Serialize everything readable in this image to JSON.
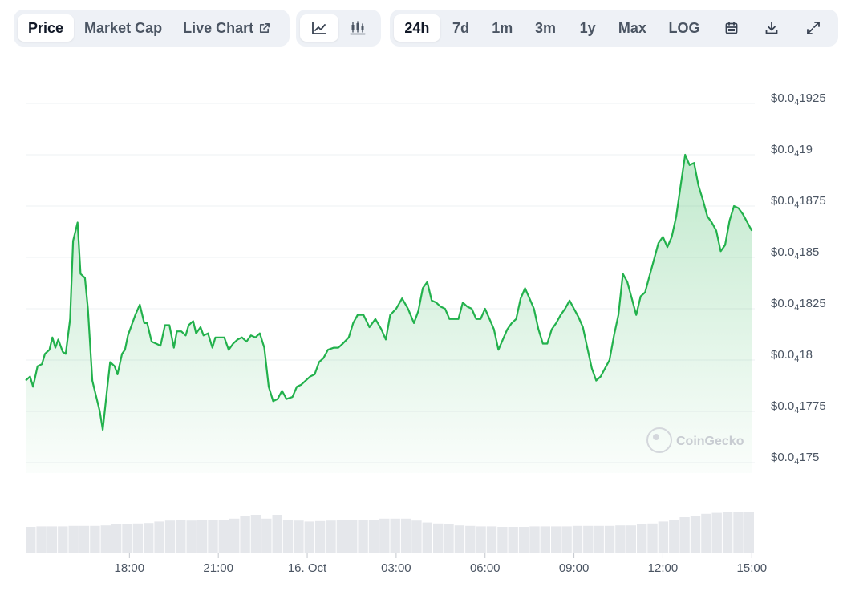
{
  "toolbar": {
    "tabs": [
      "Price",
      "Market Cap",
      "Live Chart"
    ],
    "chart_types": [
      "line-chart-icon",
      "candlestick-chart-icon"
    ],
    "ranges": [
      "24h",
      "7d",
      "1m",
      "3m",
      "1y",
      "Max",
      "LOG"
    ],
    "actions": [
      "calendar-icon",
      "download-icon",
      "expand-icon"
    ]
  },
  "watermark": "CoinGecko",
  "colors": {
    "line": "#22b14c",
    "fill_top": "#c8ecd2",
    "volume": "#e5e7eb",
    "grid": "#eef0f3"
  },
  "chart_data": {
    "type": "area",
    "title": "",
    "y_axis": {
      "ticks": [
        {
          "prefix": "$0.0",
          "sub": "4",
          "rest": "1925",
          "value": 1.925e-05
        },
        {
          "prefix": "$0.0",
          "sub": "4",
          "rest": "19",
          "value": 1.9e-05
        },
        {
          "prefix": "$0.0",
          "sub": "4",
          "rest": "1875",
          "value": 1.875e-05
        },
        {
          "prefix": "$0.0",
          "sub": "4",
          "rest": "185",
          "value": 1.85e-05
        },
        {
          "prefix": "$0.0",
          "sub": "4",
          "rest": "1825",
          "value": 1.825e-05
        },
        {
          "prefix": "$0.0",
          "sub": "4",
          "rest": "18",
          "value": 1.8e-05
        },
        {
          "prefix": "$0.0",
          "sub": "4",
          "rest": "1775",
          "value": 1.775e-05
        },
        {
          "prefix": "$0.0",
          "sub": "4",
          "rest": "175",
          "value": 1.75e-05
        }
      ],
      "ylim": [
        1.745e-05,
        1.935e-05
      ]
    },
    "x_axis": {
      "ticks": [
        {
          "label": "18:00",
          "hour": 3.5
        },
        {
          "label": "21:00",
          "hour": 6.5
        },
        {
          "label": "16. Oct",
          "hour": 9.5
        },
        {
          "label": "03:00",
          "hour": 12.5
        },
        {
          "label": "06:00",
          "hour": 15.5
        },
        {
          "label": "09:00",
          "hour": 18.5
        },
        {
          "label": "12:00",
          "hour": 21.5
        },
        {
          "label": "15:00",
          "hour": 24.5
        }
      ],
      "xlim": [
        0,
        24.6
      ]
    },
    "series": [
      {
        "hours": [
          0,
          0.15,
          0.25,
          0.4,
          0.55,
          0.65,
          0.8,
          0.9,
          1.0,
          1.1,
          1.25,
          1.35,
          1.5,
          1.6,
          1.75,
          1.85,
          2.0,
          2.1,
          2.25,
          2.35,
          2.5,
          2.6,
          2.75,
          2.85,
          3.0,
          3.1,
          3.25,
          3.35,
          3.45,
          3.55,
          3.7,
          3.85,
          4.0,
          4.1,
          4.25,
          4.4,
          4.55,
          4.7,
          4.85,
          5.0,
          5.1,
          5.25,
          5.4,
          5.5,
          5.65,
          5.75,
          5.9,
          6.0,
          6.15,
          6.3,
          6.4,
          6.55,
          6.7,
          6.85,
          7.0,
          7.15,
          7.3,
          7.45,
          7.6,
          7.75,
          7.9,
          8.05,
          8.2,
          8.35,
          8.5,
          8.65,
          8.8,
          9.0,
          9.15,
          9.3,
          9.45,
          9.6,
          9.75,
          9.9,
          10.05,
          10.2,
          10.4,
          10.55,
          10.7,
          10.9,
          11.05,
          11.2,
          11.4,
          11.6,
          11.8,
          12.0,
          12.15,
          12.3,
          12.5,
          12.7,
          12.9,
          13.1,
          13.25,
          13.4,
          13.55,
          13.7,
          13.85,
          14.0,
          14.15,
          14.3,
          14.45,
          14.6,
          14.75,
          14.9,
          15.05,
          15.2,
          15.35,
          15.5,
          15.65,
          15.8,
          15.95,
          16.1,
          16.25,
          16.4,
          16.55,
          16.7,
          16.85,
          17.0,
          17.15,
          17.3,
          17.45,
          17.6,
          17.75,
          17.9,
          18.05,
          18.2,
          18.35,
          18.5,
          18.65,
          18.8,
          18.95,
          19.1,
          19.25,
          19.4,
          19.55,
          19.7,
          19.85,
          20.0,
          20.15,
          20.3,
          20.45,
          20.6,
          20.75,
          20.9,
          21.05,
          21.2,
          21.35,
          21.5,
          21.65,
          21.8,
          21.95,
          22.1,
          22.25,
          22.4,
          22.55,
          22.7,
          22.85,
          23.0,
          23.15,
          23.3,
          23.45,
          23.6,
          23.75,
          23.9,
          24.05,
          24.2,
          24.35,
          24.5
        ],
        "values": [
          1.79e-05,
          1.792e-05,
          1.787e-05,
          1.797e-05,
          1.798e-05,
          1.803e-05,
          1.805e-05,
          1.811e-05,
          1.806e-05,
          1.81e-05,
          1.804e-05,
          1.803e-05,
          1.82e-05,
          1.858e-05,
          1.867e-05,
          1.842e-05,
          1.84e-05,
          1.825e-05,
          1.79e-05,
          1.784e-05,
          1.775e-05,
          1.766e-05,
          1.786e-05,
          1.799e-05,
          1.797e-05,
          1.793e-05,
          1.803e-05,
          1.805e-05,
          1.812e-05,
          1.816e-05,
          1.822e-05,
          1.827e-05,
          1.818e-05,
          1.818e-05,
          1.809e-05,
          1.808e-05,
          1.807e-05,
          1.817e-05,
          1.817e-05,
          1.806e-05,
          1.814e-05,
          1.814e-05,
          1.812e-05,
          1.817e-05,
          1.819e-05,
          1.813e-05,
          1.816e-05,
          1.812e-05,
          1.813e-05,
          1.806e-05,
          1.811e-05,
          1.811e-05,
          1.811e-05,
          1.805e-05,
          1.808e-05,
          1.81e-05,
          1.811e-05,
          1.809e-05,
          1.812e-05,
          1.811e-05,
          1.813e-05,
          1.806e-05,
          1.787e-05,
          1.78e-05,
          1.781e-05,
          1.785e-05,
          1.781e-05,
          1.782e-05,
          1.787e-05,
          1.788e-05,
          1.79e-05,
          1.792e-05,
          1.793e-05,
          1.799e-05,
          1.801e-05,
          1.805e-05,
          1.806e-05,
          1.806e-05,
          1.808e-05,
          1.811e-05,
          1.818e-05,
          1.822e-05,
          1.822e-05,
          1.816e-05,
          1.82e-05,
          1.815e-05,
          1.81e-05,
          1.822e-05,
          1.825e-05,
          1.83e-05,
          1.825e-05,
          1.818e-05,
          1.824e-05,
          1.835e-05,
          1.838e-05,
          1.829e-05,
          1.828e-05,
          1.826e-05,
          1.825e-05,
          1.82e-05,
          1.82e-05,
          1.82e-05,
          1.828e-05,
          1.826e-05,
          1.825e-05,
          1.82e-05,
          1.82e-05,
          1.825e-05,
          1.82e-05,
          1.815e-05,
          1.805e-05,
          1.81e-05,
          1.815e-05,
          1.818e-05,
          1.82e-05,
          1.83e-05,
          1.835e-05,
          1.83e-05,
          1.825e-05,
          1.815e-05,
          1.808e-05,
          1.808e-05,
          1.815e-05,
          1.818e-05,
          1.822e-05,
          1.825e-05,
          1.829e-05,
          1.825e-05,
          1.821e-05,
          1.816e-05,
          1.806e-05,
          1.796e-05,
          1.79e-05,
          1.792e-05,
          1.796e-05,
          1.8e-05,
          1.812e-05,
          1.822e-05,
          1.842e-05,
          1.838e-05,
          1.83e-05,
          1.822e-05,
          1.831e-05,
          1.833e-05,
          1.841e-05,
          1.849e-05,
          1.857e-05,
          1.86e-05,
          1.855e-05,
          1.86e-05,
          1.87e-05,
          1.885e-05,
          1.9e-05,
          1.895e-05,
          1.896e-05,
          1.885e-05,
          1.878e-05,
          1.87e-05,
          1.867e-05,
          1.863e-05,
          1.853e-05,
          1.856e-05,
          1.868e-05,
          1.875e-05,
          1.874e-05,
          1.871e-05,
          1.867e-05,
          1.863e-05
        ]
      }
    ],
    "volume": {
      "description": "relative volume bars along bottom",
      "values": [
        0.55,
        0.56,
        0.56,
        0.56,
        0.57,
        0.57,
        0.57,
        0.58,
        0.6,
        0.6,
        0.62,
        0.63,
        0.66,
        0.68,
        0.7,
        0.68,
        0.7,
        0.7,
        0.7,
        0.72,
        0.78,
        0.8,
        0.72,
        0.8,
        0.7,
        0.68,
        0.66,
        0.67,
        0.68,
        0.7,
        0.7,
        0.7,
        0.7,
        0.72,
        0.72,
        0.72,
        0.68,
        0.64,
        0.62,
        0.6,
        0.58,
        0.57,
        0.56,
        0.56,
        0.55,
        0.55,
        0.55,
        0.56,
        0.56,
        0.56,
        0.56,
        0.57,
        0.57,
        0.57,
        0.57,
        0.58,
        0.58,
        0.6,
        0.62,
        0.66,
        0.7,
        0.75,
        0.78,
        0.82,
        0.84,
        0.85,
        0.85,
        0.85
      ]
    }
  }
}
